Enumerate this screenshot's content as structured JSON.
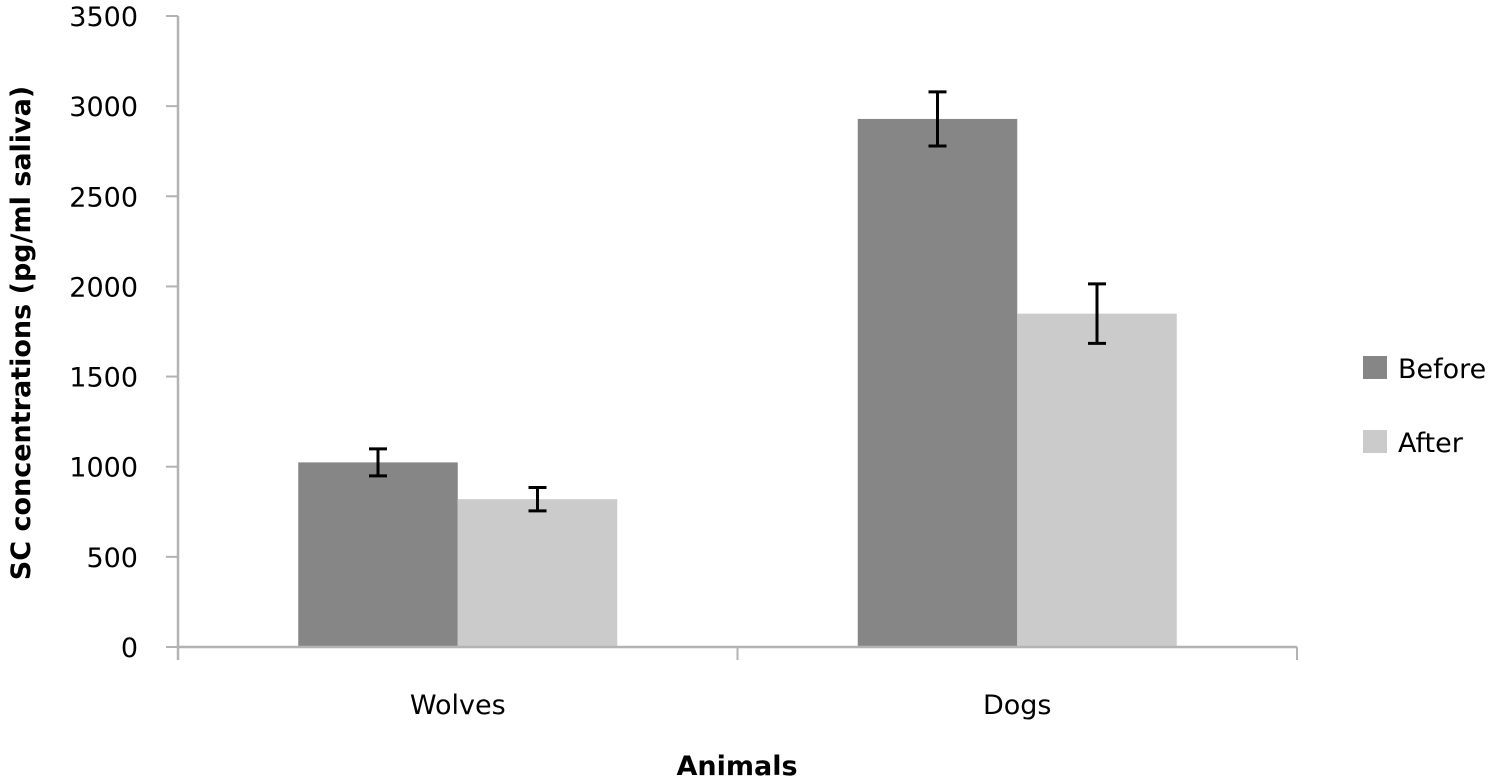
{
  "chart_data": {
    "type": "bar",
    "title": "",
    "xlabel": "Animals",
    "ylabel": "SC concentrations (pg/ml saliva)",
    "categories": [
      "Wolves",
      "Dogs"
    ],
    "series": [
      {
        "name": "Before",
        "color": "#868686",
        "values": [
          1024,
          2929
        ],
        "errors": [
          75,
          150
        ]
      },
      {
        "name": "After",
        "color": "#cbcbcb",
        "values": [
          820,
          1849
        ],
        "errors": [
          65,
          165
        ]
      }
    ],
    "ylim": [
      0,
      3500
    ],
    "yticks": [
      0,
      500,
      1000,
      1500,
      2000,
      2500,
      3000,
      3500
    ],
    "ytick_labels": [
      "0",
      "500",
      "1000",
      "1500",
      "2000",
      "2500",
      "3000",
      "3500"
    ],
    "grid": false,
    "legend_position": "right",
    "axis_color": "#b3b3b3",
    "error_bar_color": "#000000"
  }
}
